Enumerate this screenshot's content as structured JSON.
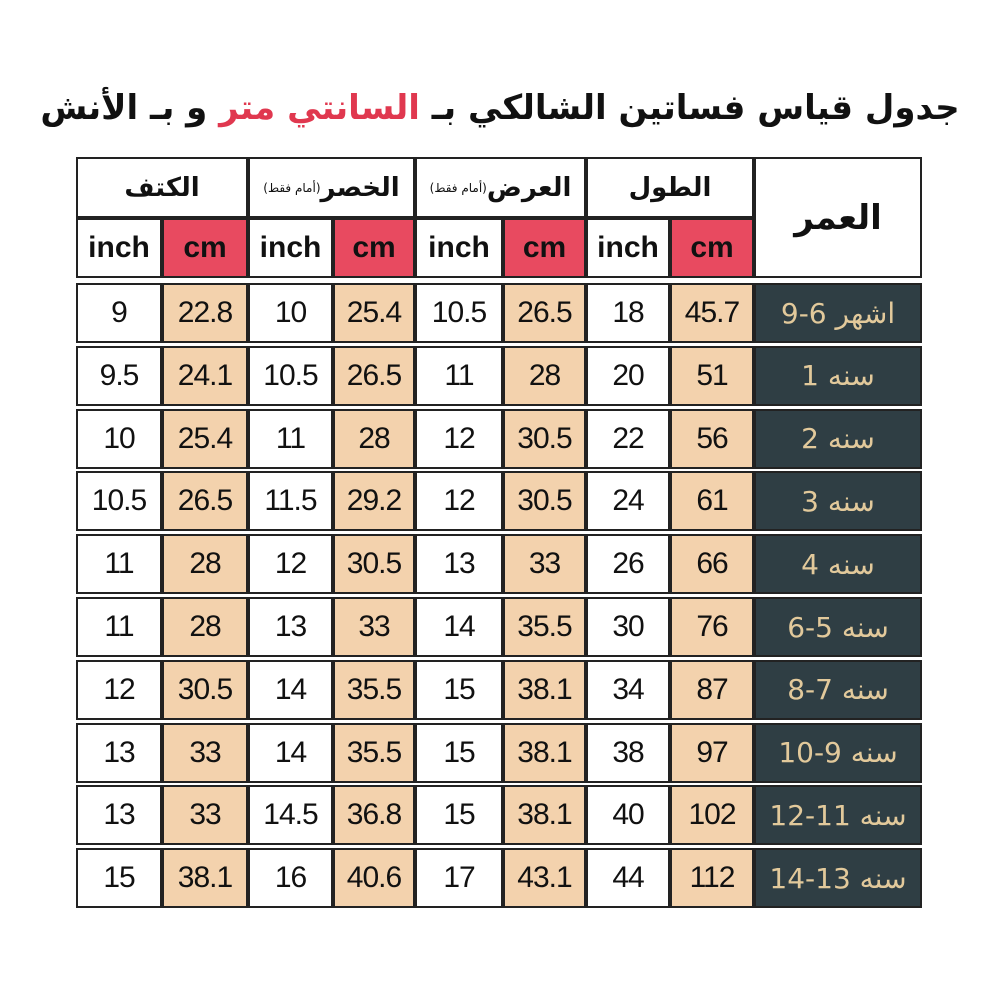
{
  "title": {
    "part1": "جدول قياس فساتين الشالكي بـ",
    "part2": "السانتي متر",
    "part3": "و بـ الأنش"
  },
  "table": {
    "age_header": "العمر",
    "groups": [
      {
        "label": "الطول",
        "units": [
          "cm",
          "inch"
        ]
      },
      {
        "label": "العرض",
        "note": "(أمام فقط)",
        "units": [
          "cm",
          "inch"
        ]
      },
      {
        "label": "الخصر",
        "note": "(أمام فقط)",
        "units": [
          "cm",
          "inch"
        ]
      },
      {
        "label": "الكتف",
        "units": [
          "cm",
          "inch"
        ]
      }
    ],
    "rows": [
      {
        "age": "9-6 اشهر",
        "values": [
          "45.7",
          "18",
          "26.5",
          "10.5",
          "25.4",
          "10",
          "22.8",
          "9"
        ]
      },
      {
        "age": "1 سنه",
        "values": [
          "51",
          "20",
          "28",
          "11",
          "26.5",
          "10.5",
          "24.1",
          "9.5"
        ]
      },
      {
        "age": "2 سنه",
        "values": [
          "56",
          "22",
          "30.5",
          "12",
          "28",
          "11",
          "25.4",
          "10"
        ]
      },
      {
        "age": "3 سنه",
        "values": [
          "61",
          "24",
          "30.5",
          "12",
          "29.2",
          "11.5",
          "26.5",
          "10.5"
        ]
      },
      {
        "age": "4 سنه",
        "values": [
          "66",
          "26",
          "33",
          "13",
          "30.5",
          "12",
          "28",
          "11"
        ]
      },
      {
        "age": "6-5 سنه",
        "values": [
          "76",
          "30",
          "35.5",
          "14",
          "33",
          "13",
          "28",
          "11"
        ]
      },
      {
        "age": "8-7 سنه",
        "values": [
          "87",
          "34",
          "38.1",
          "15",
          "35.5",
          "14",
          "30.5",
          "12"
        ]
      },
      {
        "age": "10-9 سنه",
        "values": [
          "97",
          "38",
          "38.1",
          "15",
          "35.5",
          "14",
          "33",
          "13"
        ]
      },
      {
        "age": "12-11 سنه",
        "values": [
          "102",
          "40",
          "38.1",
          "15",
          "36.8",
          "14.5",
          "33",
          "13"
        ]
      },
      {
        "age": "14-13 سنه",
        "values": [
          "112",
          "44",
          "43.1",
          "17",
          "40.6",
          "16",
          "38.1",
          "15"
        ]
      }
    ]
  }
}
